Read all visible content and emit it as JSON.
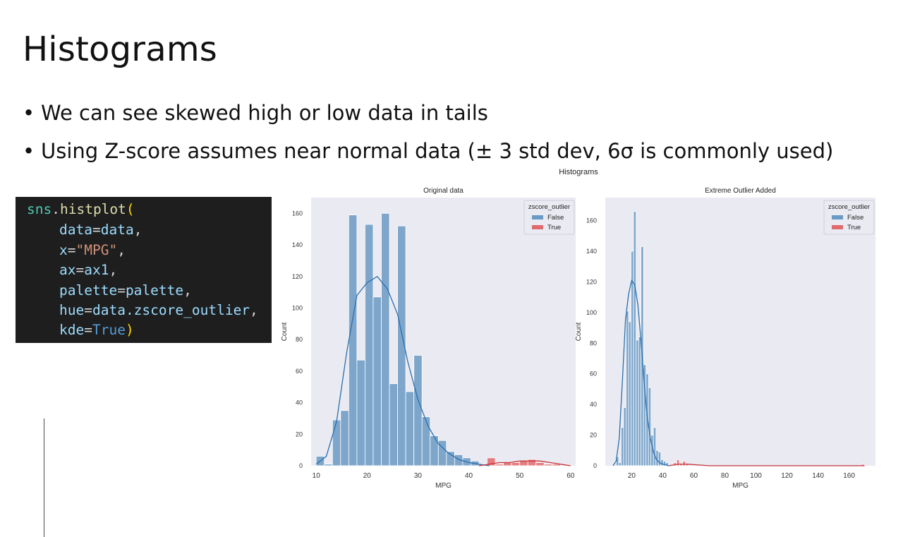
{
  "slide": {
    "title": "Histograms",
    "bullets": [
      "We can see skewed high or low data in tails",
      "Using Z-score assumes near normal data (± 3 std dev, 6σ is commonly used)"
    ],
    "bullet_marker": "•"
  },
  "code": {
    "module": "sns",
    "function": "histplot",
    "lines": [
      {
        "name": "data",
        "value": "data",
        "value_type": "name"
      },
      {
        "name": "x",
        "value": "\"MPG\"",
        "value_type": "string"
      },
      {
        "name": "ax",
        "value": "ax1",
        "value_type": "name"
      },
      {
        "name": "palette",
        "value": "palette",
        "value_type": "name"
      },
      {
        "name": "hue",
        "value": "data.zscore_outlier",
        "value_type": "name"
      },
      {
        "name": "kde",
        "value": "True",
        "value_type": "keyword"
      }
    ]
  },
  "figure": {
    "suptitle": "Histograms"
  },
  "colors": {
    "false_series": "#6b9ac4",
    "true_series": "#e06b6e",
    "false_line": "#2a6fad",
    "true_line": "#c7373b",
    "plot_bg": "#eaeaf2"
  },
  "chart_data": [
    {
      "type": "bar",
      "title": "Original data",
      "xlabel": "MPG",
      "ylabel": "Count",
      "xlim": [
        9,
        61
      ],
      "ylim": [
        0,
        170
      ],
      "xticks": [
        10,
        20,
        30,
        40,
        50,
        60
      ],
      "yticks": [
        0,
        20,
        40,
        60,
        80,
        100,
        120,
        140,
        160
      ],
      "grid": false,
      "legend": {
        "title": "zscore_outlier",
        "entries": [
          "False",
          "True"
        ],
        "placement": "top-right"
      },
      "bin_width": 1.6,
      "series": [
        {
          "name": "False",
          "bins": [
            [
              10,
              6
            ],
            [
              11.6,
              1
            ],
            [
              13.2,
              29
            ],
            [
              14.8,
              35
            ],
            [
              16.4,
              159
            ],
            [
              18.0,
              67
            ],
            [
              19.6,
              153
            ],
            [
              21.2,
              107
            ],
            [
              22.8,
              160
            ],
            [
              24.4,
              52
            ],
            [
              26.0,
              152
            ],
            [
              27.6,
              47
            ],
            [
              29.2,
              70
            ],
            [
              30.8,
              31
            ],
            [
              32.4,
              19
            ],
            [
              34.0,
              16
            ],
            [
              35.6,
              9
            ],
            [
              37.2,
              7
            ],
            [
              38.8,
              5
            ],
            [
              40.4,
              3
            ],
            [
              42.0,
              1
            ]
          ],
          "kde": [
            [
              10,
              1
            ],
            [
              12,
              6
            ],
            [
              14,
              28
            ],
            [
              16,
              72
            ],
            [
              18,
              108
            ],
            [
              20,
              116
            ],
            [
              22,
              120
            ],
            [
              24,
              112
            ],
            [
              26,
              96
            ],
            [
              28,
              66
            ],
            [
              30,
              42
            ],
            [
              32,
              25
            ],
            [
              34,
              14
            ],
            [
              36,
              8
            ],
            [
              38,
              4
            ],
            [
              40,
              2
            ],
            [
              42,
              1
            ],
            [
              44,
              0
            ]
          ]
        },
        {
          "name": "True",
          "bins": [
            [
              43.6,
              5
            ],
            [
              45.2,
              1
            ],
            [
              46.8,
              2
            ],
            [
              48.4,
              2
            ],
            [
              50.0,
              3
            ],
            [
              51.6,
              4
            ],
            [
              53.2,
              2
            ],
            [
              54.8,
              1
            ],
            [
              56.4,
              1
            ]
          ],
          "kde": [
            [
              42,
              0
            ],
            [
              44,
              1
            ],
            [
              46,
              2
            ],
            [
              48,
              2
            ],
            [
              50,
              3
            ],
            [
              52,
              3
            ],
            [
              54,
              3
            ],
            [
              56,
              2
            ],
            [
              58,
              1
            ],
            [
              60,
              0
            ]
          ]
        }
      ]
    },
    {
      "type": "bar",
      "title": "Extreme Outlier Added",
      "xlabel": "MPG",
      "ylabel": "Count",
      "xlim": [
        3,
        177
      ],
      "ylim": [
        0,
        175
      ],
      "xticks": [
        20,
        40,
        60,
        80,
        100,
        120,
        140,
        160
      ],
      "yticks": [
        0,
        20,
        40,
        60,
        80,
        100,
        120,
        140,
        160
      ],
      "grid": false,
      "legend": {
        "title": "zscore_outlier",
        "entries": [
          "False",
          "True"
        ],
        "placement": "top-right"
      },
      "bin_width": 1.6,
      "series": [
        {
          "name": "False",
          "bins": [
            [
              10,
              6
            ],
            [
              11.6,
              2
            ],
            [
              13.2,
              25
            ],
            [
              14.8,
              38
            ],
            [
              16.4,
              101
            ],
            [
              18.0,
              94
            ],
            [
              19.6,
              140
            ],
            [
              21.2,
              166
            ],
            [
              22.8,
              82
            ],
            [
              24.4,
              84
            ],
            [
              26.0,
              143
            ],
            [
              27.6,
              66
            ],
            [
              29.2,
              60
            ],
            [
              30.8,
              51
            ],
            [
              32.4,
              20
            ],
            [
              34.0,
              25
            ],
            [
              35.6,
              10
            ],
            [
              37.2,
              9
            ],
            [
              38.8,
              4
            ],
            [
              40.4,
              3
            ],
            [
              42.0,
              2
            ]
          ],
          "kde": [
            [
              8,
              0
            ],
            [
              10,
              3
            ],
            [
              12,
              18
            ],
            [
              14,
              55
            ],
            [
              16,
              95
            ],
            [
              18,
              112
            ],
            [
              20,
              121
            ],
            [
              22,
              118
            ],
            [
              24,
              105
            ],
            [
              26,
              82
            ],
            [
              28,
              55
            ],
            [
              30,
              32
            ],
            [
              32,
              18
            ],
            [
              34,
              9
            ],
            [
              36,
              4
            ],
            [
              38,
              2
            ],
            [
              40,
              1
            ],
            [
              44,
              0
            ]
          ]
        },
        {
          "name": "True",
          "bins": [
            [
              47.0,
              2
            ],
            [
              49.0,
              4
            ],
            [
              51.0,
              1
            ],
            [
              53.0,
              3
            ],
            [
              55.0,
              1
            ],
            [
              168.0,
              1
            ]
          ],
          "kde": [
            [
              44,
              0
            ],
            [
              50,
              1
            ],
            [
              56,
              1
            ],
            [
              70,
              0
            ],
            [
              100,
              0
            ],
            [
              140,
              0
            ],
            [
              170,
              0
            ]
          ]
        }
      ]
    }
  ]
}
